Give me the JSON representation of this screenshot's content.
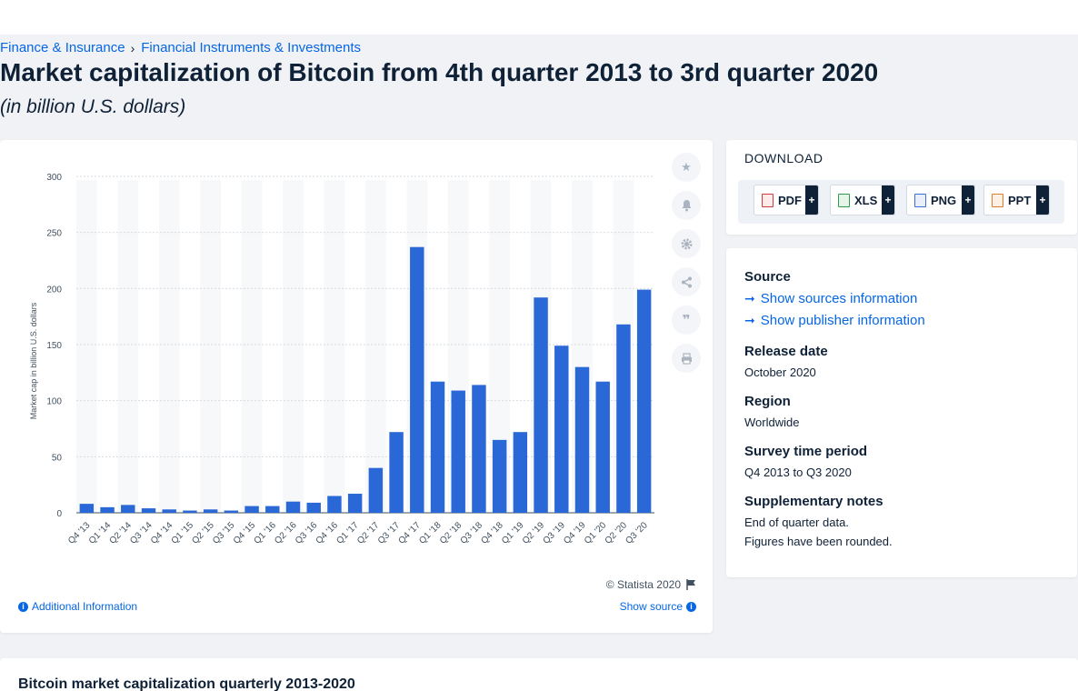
{
  "breadcrumb": {
    "items": [
      "Finance & Insurance",
      "Financial Instruments & Investments"
    ]
  },
  "title": "Market capitalization of Bitcoin from 4th quarter 2013 to 3rd quarter 2020",
  "subtitle": "(in billion U.S. dollars)",
  "chart_data": {
    "type": "bar",
    "categories": [
      "Q4 '13",
      "Q1 '14",
      "Q2 '14",
      "Q3 '14",
      "Q4 '14",
      "Q1 '15",
      "Q2 '15",
      "Q3 '15",
      "Q4 '15",
      "Q1 '16",
      "Q2 '16",
      "Q3 '16",
      "Q4 '16",
      "Q1 '17",
      "Q2 '17",
      "Q3 '17",
      "Q4 '17",
      "Q1 '18",
      "Q2 '18",
      "Q3 '18",
      "Q4 '18",
      "Q1 '19",
      "Q2 '19",
      "Q3 '19",
      "Q4 '19",
      "Q1 '20",
      "Q2 '20",
      "Q3 '20"
    ],
    "values": [
      8,
      5,
      7,
      4,
      3,
      2,
      3,
      2,
      6,
      6,
      10,
      9,
      15,
      17,
      40,
      72,
      237,
      117,
      109,
      114,
      65,
      72,
      192,
      149,
      130,
      117,
      168,
      199
    ],
    "ylabel": "Market cap in billion U.S. dollars",
    "yticks": [
      0,
      50,
      100,
      150,
      200,
      250,
      300
    ],
    "ylim": [
      0,
      300
    ],
    "color": "#2a68d8",
    "grid": true
  },
  "chart_footer": {
    "credit": "© Statista 2020",
    "additional_info": "Additional Information",
    "show_source": "Show source"
  },
  "tools": {
    "icons": [
      "star-icon",
      "bell-icon",
      "gear-icon",
      "share-icon",
      "quote-icon",
      "print-icon"
    ]
  },
  "download": {
    "title": "DOWNLOAD",
    "formats": [
      "PDF",
      "XLS",
      "PNG",
      "PPT"
    ],
    "plus": "+"
  },
  "info": {
    "source_label": "Source",
    "show_sources": "Show sources information",
    "show_publisher": "Show publisher information",
    "release_label": "Release date",
    "release_value": "October 2020",
    "region_label": "Region",
    "region_value": "Worldwide",
    "period_label": "Survey time period",
    "period_value": "Q4 2013 to Q3 2020",
    "notes_label": "Supplementary notes",
    "notes_line1": "End of quarter data.",
    "notes_line2": "Figures have been rounded."
  },
  "bottom": {
    "title": "Bitcoin market capitalization quarterly 2013-2020"
  }
}
